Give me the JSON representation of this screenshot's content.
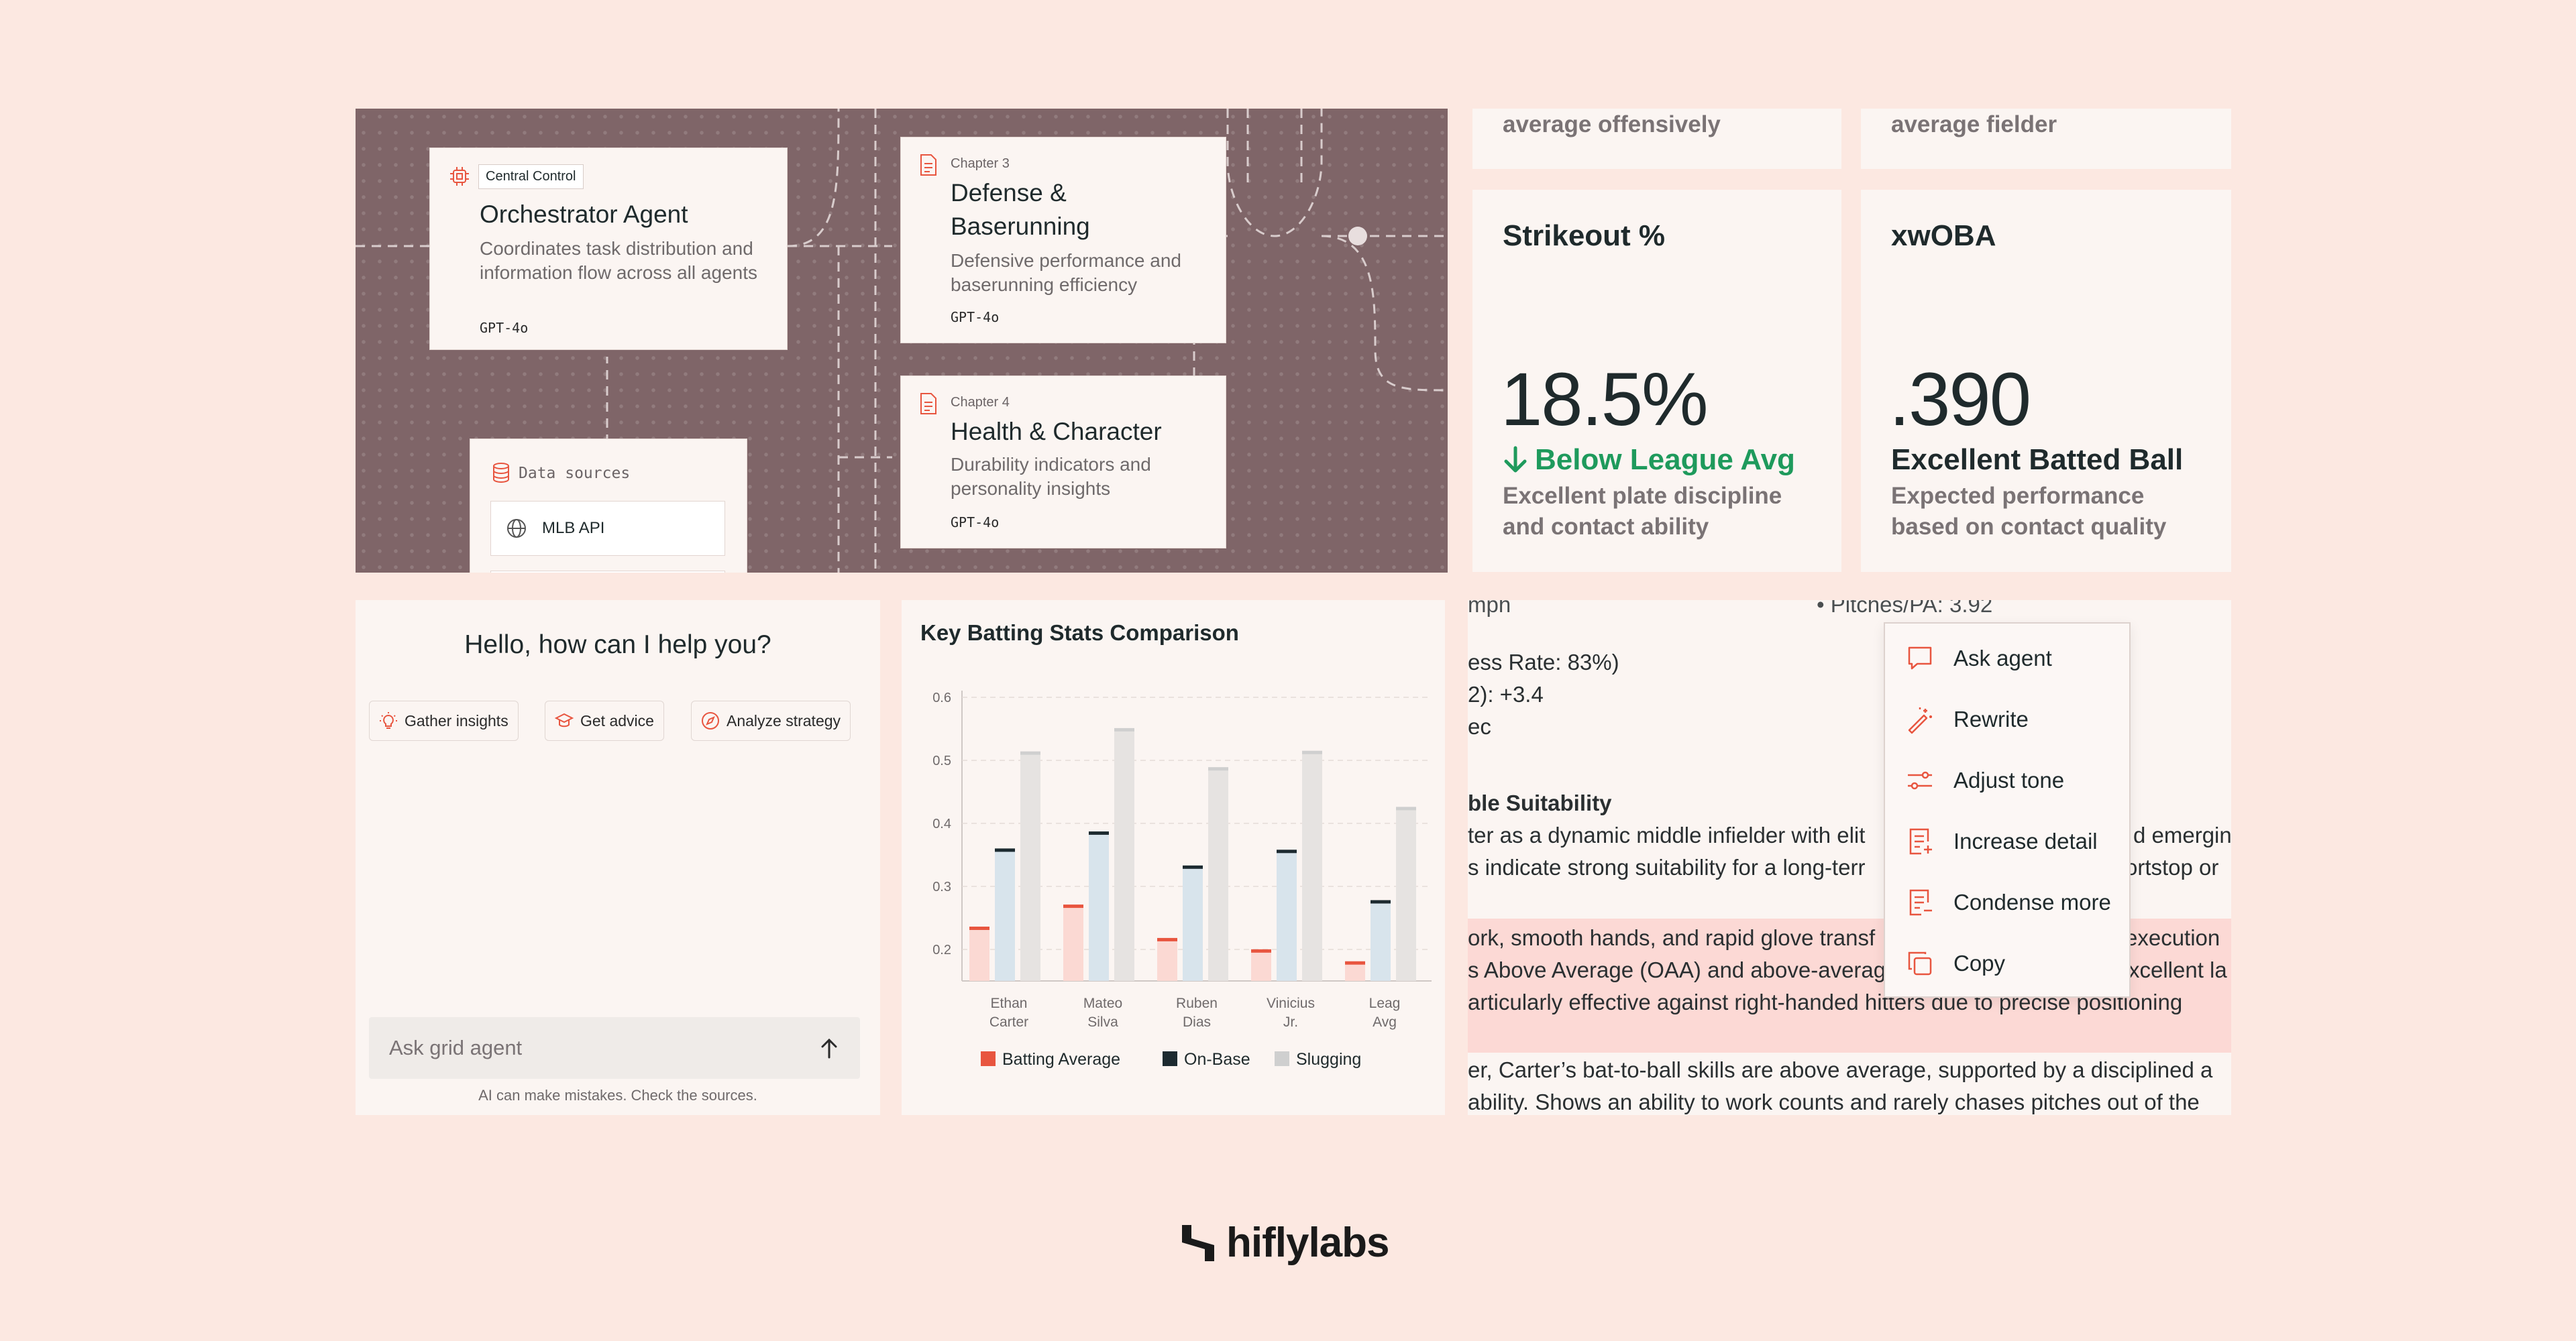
{
  "diagram": {
    "orchestrator": {
      "tag": "Central Control",
      "title": "Orchestrator Agent",
      "desc": "Coordinates task distribution and information flow across all agents",
      "model": "GPT-4o"
    },
    "chapter3": {
      "chapter": "Chapter 3",
      "title": "Defense & Baserunning",
      "desc": "Defensive performance and baserunning efficiency",
      "model": "GPT-4o"
    },
    "chapter4": {
      "chapter": "Chapter 4",
      "title": "Health & Character",
      "desc": "Durability indicators and personality insights",
      "model": "GPT-4o"
    },
    "data_sources": {
      "label": "Data sources",
      "items": [
        "MLB API"
      ]
    }
  },
  "stats": {
    "top_left_fragment": "average offensively",
    "top_right_fragment": "average fielder",
    "strikeout": {
      "label": "Strikeout %",
      "value": "18.5%",
      "trend": "Below League Avg",
      "trend_color": "#1e9a5c",
      "desc": "Excellent plate discipline and contact ability"
    },
    "xwoba": {
      "label": "xwOBA",
      "value": ".390",
      "trend": "Excellent Batted Ball",
      "trend_color": "#1f2a2c",
      "desc": "Expected performance based on contact quality"
    }
  },
  "chat": {
    "greeting": "Hello, how can I help you?",
    "chips": [
      {
        "label": "Gather insights",
        "icon": "lightbulb-icon"
      },
      {
        "label": "Get advice",
        "icon": "graduation-cap-icon"
      },
      {
        "label": "Analyze strategy",
        "icon": "compass-icon"
      }
    ],
    "placeholder": "Ask grid agent",
    "disclaimer": "AI can make mistakes. Check the sources."
  },
  "chart_data": {
    "type": "bar",
    "title": "Key Batting Stats Comparison",
    "categories": [
      "Ethan Carter",
      "Mateo Silva",
      "Ruben Dias",
      "Vinicius Jr.",
      "Leag Avg"
    ],
    "category_lines": [
      [
        "Ethan",
        "Carter"
      ],
      [
        "Mateo",
        "Silva"
      ],
      [
        "Ruben",
        "Dias"
      ],
      [
        "Vinicius",
        "Jr."
      ],
      [
        "Leag",
        "Avg"
      ]
    ],
    "series": [
      {
        "name": "Batting Average",
        "values": [
          0.233,
          0.268,
          0.215,
          0.197,
          0.178
        ],
        "color": "#e8553f"
      },
      {
        "name": "On-Base",
        "values": [
          0.357,
          0.384,
          0.33,
          0.355,
          0.275
        ],
        "color": "#1c2a30"
      },
      {
        "name": "Slugging",
        "values": [
          0.511,
          0.548,
          0.486,
          0.512,
          0.423
        ],
        "color": "#cfcfcf"
      }
    ],
    "yticks": [
      "0.2",
      "0.3",
      "0.4",
      "0.5",
      "0.6"
    ],
    "ylim": [
      0.15,
      0.6
    ],
    "grid": true,
    "legend": "bottom"
  },
  "text_panel": {
    "lines": [
      "mph",
      "•  Pitches/PA: 3.92",
      "ess Rate: 83%)",
      "2): +3.4",
      "ec",
      "ble Suitability",
      "ter as a dynamic middle infielder with elit",
      "d emerging",
      "s indicate strong suitability for a long-terr",
      "ortstop or",
      "ork, smooth hands, and rapid glove transf",
      "execution",
      "s Above Average (OAA) and above-averag",
      "xcellent la",
      "articularly effective against right-handed hitters due to precise positioning",
      "er, Carter’s bat-to-ball skills are above average, supported by a disciplined a",
      "ability. Shows an ability to work counts and rarely chases pitches out of the"
    ]
  },
  "menu": {
    "items": [
      {
        "label": "Ask agent",
        "icon": "chat-bubble-icon"
      },
      {
        "label": "Rewrite",
        "icon": "magic-wand-icon"
      },
      {
        "label": "Adjust tone",
        "icon": "sliders-icon"
      },
      {
        "label": "Increase detail",
        "icon": "document-plus-icon"
      },
      {
        "label": "Condense more",
        "icon": "document-minus-icon"
      },
      {
        "label": "Copy",
        "icon": "copy-icon"
      }
    ],
    "accent": "#e8553f"
  },
  "brand": {
    "name": "hiflylabs"
  }
}
